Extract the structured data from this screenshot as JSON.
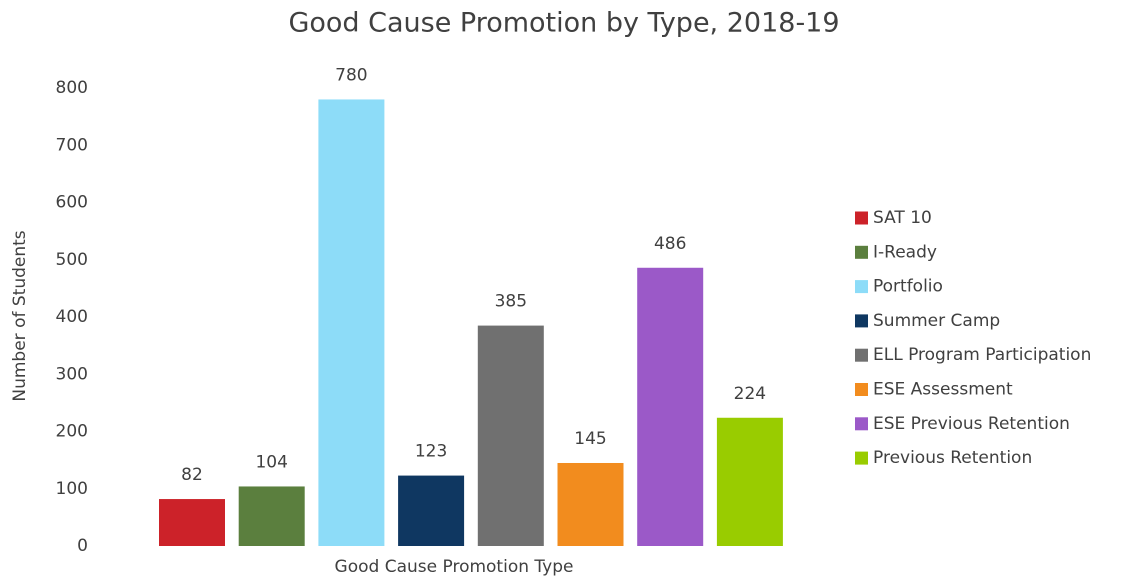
{
  "chart_data": {
    "type": "bar",
    "title": "Good Cause Promotion by Type, 2018-19",
    "x_label": "Good Cause Promotion Type",
    "y_label": "Number of Students",
    "categories": [
      null
    ],
    "series": [
      {
        "name": "SAT 10",
        "color": "#cc2229",
        "values": [
          82
        ]
      },
      {
        "name": "I-Ready",
        "color": "#5b7f3e",
        "values": [
          104
        ]
      },
      {
        "name": "Portfolio",
        "color": "#8ddcf8",
        "values": [
          780
        ]
      },
      {
        "name": "Summer Camp",
        "color": "#0f3761",
        "values": [
          123
        ]
      },
      {
        "name": "ELL Program Participation",
        "color": "#707070",
        "values": [
          385
        ]
      },
      {
        "name": "ESE Assessment",
        "color": "#f28c1e",
        "values": [
          145
        ]
      },
      {
        "name": "ESE Previous Retention",
        "color": "#9b59c8",
        "values": [
          486
        ]
      },
      {
        "name": "Previous Retention",
        "color": "#99cc00",
        "values": [
          224
        ]
      }
    ],
    "ylim": [
      0,
      800
    ],
    "yticks": [
      0,
      100,
      200,
      300,
      400,
      500,
      600,
      700,
      800
    ],
    "grid": false,
    "legend": "right"
  }
}
